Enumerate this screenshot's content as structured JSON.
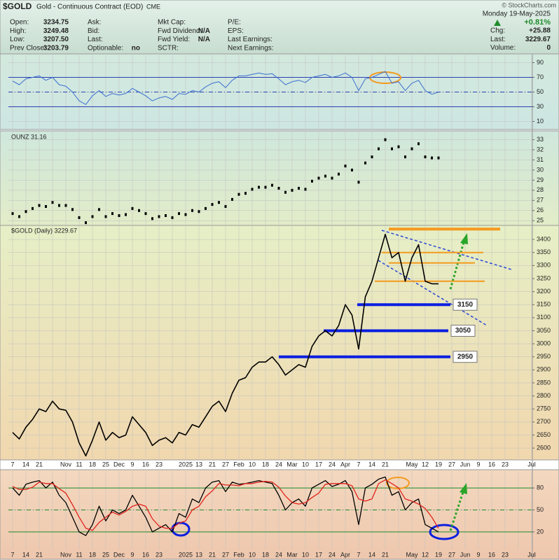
{
  "header": {
    "symbol": "$GOLD",
    "name": "Gold - Continuous Contract (EOD)",
    "exchange": "CME",
    "copyright": "© StockCharts.com",
    "date": "Monday 19-May-2025",
    "change_pct": "+0.81%",
    "columns": [
      [
        [
          "Open:",
          "3234.75"
        ],
        [
          "High:",
          "3249.48"
        ],
        [
          "Low:",
          "3207.50"
        ],
        [
          "Prev Close:",
          "3203.79"
        ]
      ],
      [
        [
          "Ask:"
        ],
        [
          "Bid:"
        ],
        [
          "Last:"
        ],
        [
          "Optionable:",
          "no"
        ]
      ],
      [
        [
          "Mkt Cap:"
        ],
        [
          "Fwd Dividend:",
          "N/A"
        ],
        [
          "Fwd Yield:",
          "N/A"
        ],
        [
          "SCTR:"
        ]
      ],
      [
        [
          "P/E:"
        ],
        [
          "EPS:"
        ],
        [
          "Last Earnings:"
        ],
        [
          "Next Earnings:"
        ]
      ]
    ],
    "quote": [
      [
        "Chg:",
        "+25.88"
      ],
      [
        "Last:",
        "3229.67"
      ],
      [
        "Volume:",
        "0"
      ]
    ]
  },
  "chart_data": [
    {
      "type": "line",
      "color": "#3b6fd0",
      "ylim": [
        0,
        100
      ],
      "yticks": [
        90,
        70,
        50,
        30,
        10
      ],
      "grid": true,
      "reference_lines": [
        70,
        50,
        30
      ],
      "reference_color": "#2a3fb0",
      "values": [
        65,
        60,
        68,
        70,
        72,
        66,
        70,
        60,
        58,
        50,
        38,
        33,
        45,
        52,
        44,
        48,
        46,
        48,
        55,
        50,
        45,
        38,
        42,
        44,
        40,
        48,
        47,
        52,
        50,
        57,
        62,
        64,
        56,
        66,
        72,
        72,
        74,
        76,
        74,
        75,
        68,
        60,
        64,
        66,
        63,
        70,
        72,
        74,
        70,
        72,
        76,
        70,
        52,
        68,
        70,
        74,
        78,
        62,
        64,
        52,
        62,
        66,
        52,
        47,
        50
      ]
    },
    {
      "type": "dot",
      "label": "OUNZ 31.16",
      "color": "#000000",
      "ylim": [
        24.6,
        33.8
      ],
      "yticks": [
        33,
        32,
        31,
        30,
        29,
        28,
        27,
        26,
        25
      ],
      "grid": true,
      "values": [
        25.7,
        25.4,
        25.9,
        26.2,
        26.5,
        26.4,
        26.8,
        26.5,
        26.5,
        26.1,
        25.3,
        24.8,
        25.4,
        26.1,
        25.4,
        25.7,
        25.5,
        25.6,
        26.2,
        26.0,
        25.7,
        25.2,
        25.4,
        25.5,
        25.3,
        25.7,
        25.6,
        26.0,
        25.9,
        26.2,
        26.6,
        26.8,
        26.4,
        27.1,
        27.6,
        27.7,
        28.1,
        28.3,
        28.3,
        28.5,
        28.2,
        27.8,
        28.0,
        28.2,
        28.1,
        28.9,
        29.2,
        29.4,
        29.2,
        29.6,
        30.4,
        30.0,
        28.8,
        30.7,
        31.3,
        32.1,
        33.0,
        32.1,
        32.3,
        31.3,
        32.1,
        32.6,
        31.3,
        31.2,
        31.2
      ]
    },
    {
      "type": "line",
      "label": "$GOLD (Daily) 3229.67",
      "color": "#000000",
      "ylim": [
        2560,
        3454
      ],
      "yticks": [
        3400,
        3350,
        3300,
        3250,
        3200,
        3150,
        3100,
        3050,
        3000,
        2950,
        2900,
        2850,
        2800,
        2750,
        2700,
        2650,
        2600
      ],
      "grid": true,
      "categories": [
        "7",
        null,
        "14",
        null,
        "21",
        null,
        null,
        null,
        "Nov",
        null,
        "11",
        null,
        "18",
        null,
        "25",
        null,
        "Dec",
        null,
        "9",
        null,
        "16",
        null,
        "23",
        null,
        null,
        null,
        "2025",
        null,
        "13",
        null,
        "21",
        null,
        "27",
        null,
        "Feb",
        null,
        "10",
        null,
        "18",
        null,
        "24",
        null,
        "Mar",
        null,
        "10",
        null,
        "17",
        null,
        "24",
        null,
        "Apr",
        null,
        "7",
        null,
        "14",
        null,
        "21",
        null,
        null,
        null,
        "May",
        null,
        "12",
        null,
        "19",
        null,
        "27",
        null,
        "Jun",
        null,
        "9",
        null,
        "16",
        null,
        "23",
        null,
        null,
        null,
        "Jul",
        null
      ],
      "values": [
        2660,
        2635,
        2680,
        2710,
        2750,
        2740,
        2780,
        2750,
        2745,
        2700,
        2620,
        2570,
        2630,
        2700,
        2630,
        2660,
        2640,
        2650,
        2720,
        2690,
        2660,
        2610,
        2630,
        2640,
        2620,
        2660,
        2650,
        2690,
        2680,
        2720,
        2760,
        2780,
        2740,
        2810,
        2860,
        2870,
        2910,
        2930,
        2930,
        2950,
        2920,
        2880,
        2900,
        2920,
        2910,
        2990,
        3030,
        3050,
        3030,
        3070,
        3150,
        3110,
        2980,
        3180,
        3240,
        3330,
        3420,
        3330,
        3350,
        3240,
        3330,
        3380,
        3240,
        3230,
        3230,
        null,
        null,
        null,
        null,
        null,
        null,
        null,
        null,
        null,
        null,
        null,
        null,
        null,
        null,
        null
      ],
      "support_levels": [
        3150,
        3050,
        2950
      ],
      "support_color": "#0a1fe0",
      "resistance_levels": [
        3440,
        3350,
        3310,
        3240
      ],
      "resistance_color": "#f39a1e"
    },
    {
      "type": "line",
      "ylim": [
        -4,
        103
      ],
      "yticks": [
        80,
        50,
        20
      ],
      "grid": true,
      "reference_lines": [
        80,
        50,
        20
      ],
      "reference_color": "#1f8a2a",
      "categories": [
        "7",
        null,
        "14",
        null,
        "21",
        null,
        null,
        null,
        "Nov",
        null,
        "11",
        null,
        "18",
        null,
        "25",
        null,
        "Dec",
        null,
        "9",
        null,
        "16",
        null,
        "23",
        null,
        null,
        null,
        "2025",
        null,
        "13",
        null,
        "21",
        null,
        "27",
        null,
        "Feb",
        null,
        "10",
        null,
        "18",
        null,
        "24",
        null,
        "Mar",
        null,
        "10",
        null,
        "17",
        null,
        "24",
        null,
        "Apr",
        null,
        "7",
        null,
        "14",
        null,
        "21",
        null,
        null,
        null,
        "May",
        null,
        "12",
        null,
        "19",
        null,
        "27",
        null,
        "Jun",
        null,
        "9",
        null,
        "16",
        null,
        "23",
        null,
        null,
        null,
        "Jul",
        null
      ],
      "series": [
        {
          "color": "#000000",
          "values": [
            80,
            70,
            85,
            88,
            90,
            80,
            88,
            70,
            60,
            40,
            20,
            15,
            30,
            55,
            35,
            50,
            45,
            50,
            70,
            55,
            40,
            20,
            25,
            30,
            20,
            45,
            40,
            65,
            60,
            80,
            88,
            90,
            75,
            88,
            85,
            86,
            88,
            90,
            88,
            86,
            70,
            50,
            60,
            65,
            55,
            80,
            85,
            90,
            82,
            85,
            90,
            75,
            30,
            80,
            85,
            92,
            95,
            70,
            75,
            50,
            60,
            65,
            30,
            25,
            20,
            null,
            null,
            null,
            null,
            null,
            null,
            null,
            null,
            null,
            null,
            null,
            null,
            null,
            null,
            null
          ]
        },
        {
          "color": "#e0241c",
          "values": [
            82,
            78,
            78,
            81,
            88,
            86,
            86,
            79,
            73,
            57,
            40,
            25,
            22,
            33,
            40,
            47,
            43,
            48,
            55,
            58,
            55,
            38,
            28,
            25,
            25,
            32,
            35,
            50,
            55,
            68,
            76,
            86,
            84,
            84,
            83,
            86,
            86,
            88,
            89,
            88,
            81,
            69,
            60,
            58,
            60,
            67,
            73,
            85,
            86,
            86,
            86,
            83,
            65,
            62,
            65,
            86,
            91,
            86,
            80,
            65,
            62,
            58,
            52,
            40,
            25,
            null,
            null,
            null,
            null,
            null,
            null,
            null,
            null,
            null,
            null,
            null,
            null,
            null,
            null,
            null
          ]
        }
      ]
    }
  ]
}
